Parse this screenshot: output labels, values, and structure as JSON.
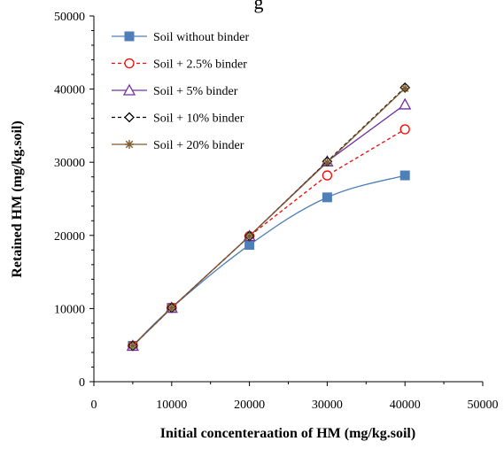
{
  "chart_data": {
    "type": "line",
    "title": "",
    "title_fragment": "g",
    "xlabel": "Initial concenteraation of HM (mg/kg.soil)",
    "ylabel": "Retained HM  (mg/kg.soil)",
    "xlim": [
      0,
      50000
    ],
    "ylim": [
      0,
      50000
    ],
    "xticks": [
      0,
      10000,
      20000,
      30000,
      40000,
      50000
    ],
    "yticks": [
      0,
      10000,
      20000,
      30000,
      40000,
      50000
    ],
    "xtick_labels": [
      "0",
      "10000",
      "20000",
      "30000",
      "40000",
      "50000"
    ],
    "ytick_labels": [
      "0",
      "10000",
      "20000",
      "30000",
      "40000",
      "50000"
    ],
    "grid": false,
    "legend_position": "top-left",
    "x": [
      5000,
      10000,
      20000,
      30000,
      40000
    ],
    "series": [
      {
        "name": "Soil without binder",
        "values": [
          4900,
          10100,
          18700,
          25200,
          28200
        ],
        "color": "#4f7fb8",
        "marker": "square-filled",
        "dash": "solid",
        "smooth": true
      },
      {
        "name": "Soil + 2.5% binder",
        "values": [
          4900,
          10100,
          19900,
          28200,
          34500
        ],
        "color": "#ff0000",
        "marker": "circle-open",
        "dash": "dashed"
      },
      {
        "name": "Soil + 5% binder",
        "values": [
          4900,
          10100,
          19900,
          30100,
          37900
        ],
        "color": "#7030a0",
        "marker": "triangle-open",
        "dash": "solid"
      },
      {
        "name": "Soil + 10% binder",
        "values": [
          4900,
          10100,
          19900,
          30100,
          40200
        ],
        "color": "#000000",
        "marker": "diamond-open",
        "dash": "dashed"
      },
      {
        "name": "Soil + 20% binder",
        "values": [
          4900,
          10100,
          19900,
          30000,
          40100
        ],
        "color": "#7f5a2c",
        "marker": "asterisk",
        "dash": "solid"
      }
    ]
  }
}
